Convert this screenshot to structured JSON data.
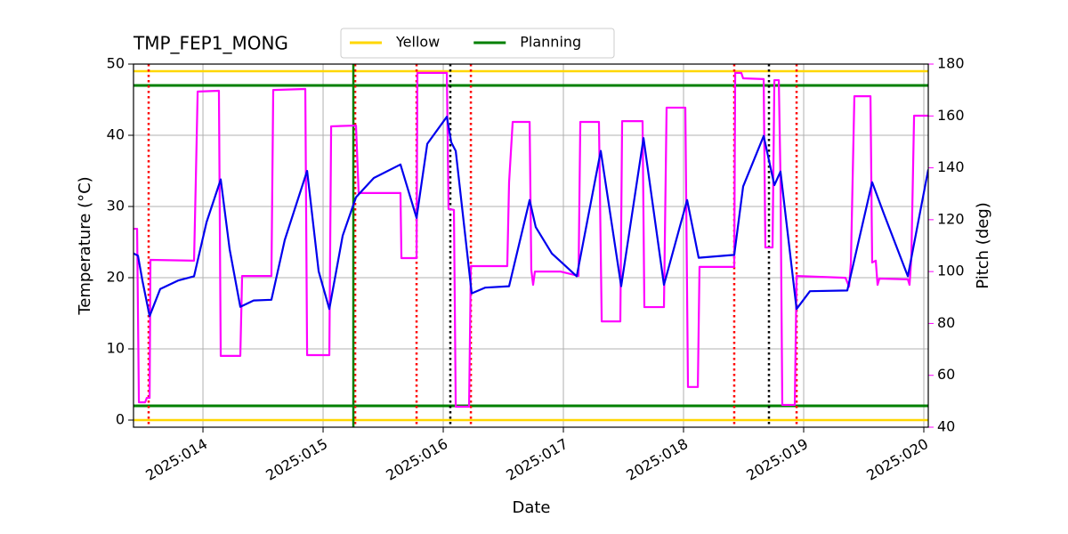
{
  "chart_data": {
    "type": "line",
    "title": "TMP_FEP1_MONG",
    "xlabel": "Date",
    "ylabel": "Temperature (°C)",
    "y2label": "Pitch (deg)",
    "y2color": "#ff00ff",
    "xlim": [
      13.422,
      20.037
    ],
    "xticks": [
      {
        "value": 14,
        "label": "2025:014"
      },
      {
        "value": 15,
        "label": "2025:015"
      },
      {
        "value": 16,
        "label": "2025:016"
      },
      {
        "value": 17,
        "label": "2025:017"
      },
      {
        "value": 18,
        "label": "2025:018"
      },
      {
        "value": 19,
        "label": "2025:019"
      },
      {
        "value": 20,
        "label": "2025:020"
      }
    ],
    "ylim": [
      -1,
      50
    ],
    "yticks": [
      0,
      10,
      20,
      30,
      40,
      50
    ],
    "y2lim": [
      40,
      180
    ],
    "y2ticks": [
      40,
      60,
      80,
      100,
      120,
      140,
      160,
      180
    ],
    "grid": true,
    "limits": [
      {
        "name": "Yellow",
        "color": "#ffd700",
        "values": [
          49,
          0
        ]
      },
      {
        "name": "Planning",
        "color": "#008000",
        "values": [
          47,
          2
        ]
      }
    ],
    "vlines": [
      {
        "color": "#ff0000",
        "style": "dotted",
        "x": [
          13.548,
          15.267,
          15.778,
          16.23,
          18.422,
          18.941
        ]
      },
      {
        "color": "#000000",
        "style": "dotted",
        "x": [
          16.059,
          18.711
        ]
      },
      {
        "color": "#008000",
        "style": "solid",
        "x": [
          15.252
        ]
      }
    ],
    "series": [
      {
        "color": "#0000ee",
        "axis": "y",
        "x": [
          13.422,
          13.459,
          13.496,
          13.556,
          13.644,
          13.793,
          13.926,
          14.03,
          14.148,
          14.222,
          14.311,
          14.422,
          14.57,
          14.681,
          14.867,
          14.963,
          15.052,
          15.163,
          15.274,
          15.422,
          15.644,
          15.778,
          15.867,
          16.03,
          16.067,
          16.104,
          16.237,
          16.348,
          16.548,
          16.719,
          16.77,
          16.904,
          17.111,
          17.311,
          17.481,
          17.667,
          17.837,
          18.03,
          18.126,
          18.422,
          18.496,
          18.667,
          18.756,
          18.807,
          18.941,
          19.052,
          19.363,
          19.57,
          19.667,
          19.867,
          20.037
        ],
        "values": [
          23.4,
          23.1,
          19.6,
          14.6,
          18.4,
          19.6,
          20.2,
          27.8,
          33.8,
          24,
          15.9,
          16.8,
          16.9,
          25.3,
          35,
          20.9,
          15.6,
          25.9,
          31.3,
          34,
          35.9,
          28.4,
          38.8,
          42.6,
          39,
          37.8,
          17.8,
          18.6,
          18.8,
          30.9,
          27.1,
          23.4,
          20.2,
          37.8,
          18.8,
          39.6,
          19,
          30.9,
          22.8,
          23.2,
          32.8,
          39.9,
          33,
          34.9,
          15.6,
          18.1,
          18.2,
          33.4,
          29,
          20.2,
          35.2
        ]
      },
      {
        "color": "#ff00ff",
        "axis": "y2",
        "x": [
          13.422,
          13.452,
          13.467,
          13.519,
          13.533,
          13.556,
          13.563,
          13.926,
          13.941,
          13.956,
          14.133,
          14.148,
          14.311,
          14.326,
          14.57,
          14.585,
          14.852,
          14.867,
          15.052,
          15.067,
          15.274,
          15.296,
          15.644,
          15.652,
          15.778,
          15.785,
          16.03,
          16.044,
          16.089,
          16.104,
          16.215,
          16.23,
          16.533,
          16.548,
          16.578,
          16.719,
          16.733,
          16.748,
          16.763,
          16.978,
          17.126,
          17.141,
          17.296,
          17.319,
          17.474,
          17.489,
          17.659,
          17.674,
          17.837,
          17.859,
          18.015,
          18.037,
          18.119,
          18.133,
          18.422,
          18.43,
          18.481,
          18.496,
          18.667,
          18.681,
          18.741,
          18.756,
          18.793,
          18.807,
          18.822,
          18.926,
          18.941,
          19.348,
          19.378,
          19.393,
          19.422,
          19.556,
          19.57,
          19.6,
          19.615,
          19.63,
          19.867,
          19.881,
          19.896,
          19.919,
          20.037
        ],
        "values": [
          116.5,
          116.5,
          49.6,
          49.6,
          51.3,
          51.3,
          104.5,
          104.2,
          136,
          169.4,
          169.7,
          67.5,
          67.5,
          98.3,
          98.3,
          170,
          170.4,
          67.8,
          67.8,
          156,
          156.3,
          130.3,
          130.3,
          105.2,
          105.2,
          176.6,
          176.6,
          124.1,
          123.8,
          47.9,
          47.9,
          102.1,
          102.1,
          134.4,
          157.7,
          157.7,
          100.7,
          94.9,
          100,
          100,
          98.3,
          157.7,
          157.7,
          80.8,
          80.8,
          158,
          158,
          86.3,
          86.3,
          163.2,
          163.2,
          55.5,
          55.5,
          101.8,
          101.8,
          176.6,
          176.6,
          174.5,
          174.2,
          109.3,
          109.3,
          173.8,
          173.8,
          136,
          48.6,
          48.6,
          98.3,
          97.6,
          94.2,
          103.5,
          167.6,
          167.6,
          103.5,
          104.2,
          94.9,
          97.3,
          97,
          94.9,
          105.2,
          160.1,
          160.1
        ]
      }
    ]
  }
}
